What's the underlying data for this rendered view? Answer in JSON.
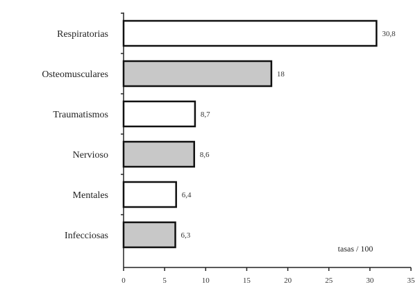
{
  "chart_data": {
    "type": "bar",
    "orientation": "horizontal",
    "categories": [
      "Respiratorias",
      "Osteomusculares",
      "Traumatismos",
      "Nervioso",
      "Mentales",
      "Infecciosas"
    ],
    "values": [
      30.8,
      18,
      8.7,
      8.6,
      6.4,
      6.3
    ],
    "value_labels": [
      "30,8",
      "18",
      "8,7",
      "8,6",
      "6,4",
      "6,3"
    ],
    "fills": [
      "#ffffff",
      "#c8c8c8",
      "#ffffff",
      "#c8c8c8",
      "#ffffff",
      "#c8c8c8"
    ],
    "xlim": [
      0,
      35
    ],
    "x_ticks": [
      0,
      5,
      10,
      15,
      20,
      25,
      30,
      35
    ],
    "x_tick_labels": [
      "0",
      "5",
      "10",
      "15",
      "20",
      "25",
      "30",
      "35"
    ],
    "annotation": "tasas / 100",
    "grid": false
  }
}
